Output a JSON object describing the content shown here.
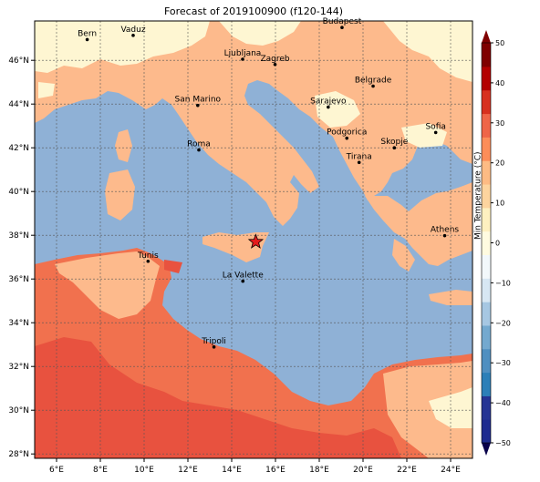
{
  "title": "Forecast of 2019100900 (f120-144)",
  "colors": {
    "sea": "#8fb1d6",
    "land_warm": "#fdba8c",
    "land_hot": "#f1714e",
    "land_cool": "#fef6d2",
    "land_red": "#e8523f",
    "border": "#000000",
    "grid": "#555555",
    "star": "#e31a1c"
  },
  "cities": [
    {
      "name": "Bern",
      "lon": 7.4,
      "lat": 46.95
    },
    {
      "name": "Vaduz",
      "lon": 9.5,
      "lat": 47.14
    },
    {
      "name": "Budapest",
      "lon": 19.04,
      "lat": 47.5
    },
    {
      "name": "Ljubljana",
      "lon": 14.5,
      "lat": 46.05
    },
    {
      "name": "Zagreb",
      "lon": 15.98,
      "lat": 45.81
    },
    {
      "name": "Belgrade",
      "lon": 20.46,
      "lat": 44.82
    },
    {
      "name": "San Marino",
      "lon": 12.45,
      "lat": 43.94
    },
    {
      "name": "Sarajevo",
      "lon": 18.41,
      "lat": 43.86
    },
    {
      "name": "Sofia",
      "lon": 23.32,
      "lat": 42.7
    },
    {
      "name": "Podgorica",
      "lon": 19.26,
      "lat": 42.44
    },
    {
      "name": "Skopje",
      "lon": 21.43,
      "lat": 42.0
    },
    {
      "name": "Roma",
      "lon": 12.5,
      "lat": 41.9
    },
    {
      "name": "Tirana",
      "lon": 19.82,
      "lat": 41.33
    },
    {
      "name": "Athens",
      "lon": 23.73,
      "lat": 37.98
    },
    {
      "name": "Tunis",
      "lon": 10.18,
      "lat": 36.81
    },
    {
      "name": "La Valette",
      "lon": 14.51,
      "lat": 35.9
    },
    {
      "name": "Tripoli",
      "lon": 13.19,
      "lat": 32.89
    }
  ],
  "star": {
    "lon": 15.1,
    "lat": 37.7
  },
  "axes": {
    "lon_ticks": [
      "6°E",
      "8°E",
      "10°E",
      "12°E",
      "14°E",
      "16°E",
      "18°E",
      "20°E",
      "22°E",
      "24°E"
    ],
    "lat_ticks": [
      "28°N",
      "30°N",
      "32°N",
      "34°N",
      "36°N",
      "38°N",
      "40°N",
      "42°N",
      "44°N",
      "46°N"
    ]
  },
  "colorbar": {
    "label": "Min Temperature (°C)",
    "ticks": [
      "−50",
      "−40",
      "−30",
      "−20",
      "−10",
      "0",
      "10",
      "20",
      "30",
      "40",
      "50"
    ],
    "colors": [
      "#1d2a8f",
      "#253494",
      "#2c7fb8",
      "#4f8fc0",
      "#74a9cf",
      "#a6c7e2",
      "#d7e7f3",
      "#f2f8fb",
      "#fffbe0",
      "#fef0c0",
      "#fdd49e",
      "#fdbb84",
      "#fc8d59",
      "#ef6548",
      "#d7301f",
      "#b30000",
      "#7f0000"
    ]
  }
}
